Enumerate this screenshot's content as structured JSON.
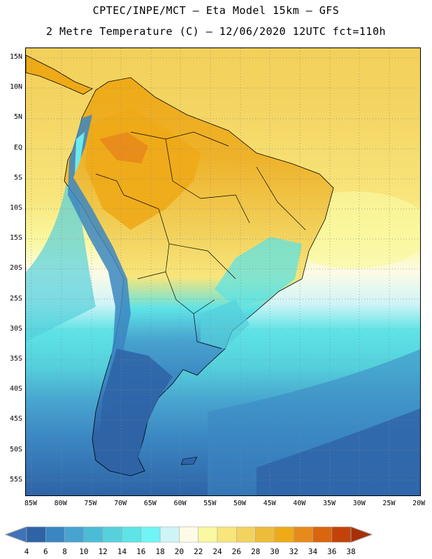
{
  "header": {
    "line1": "CPTEC/INPE/MCT –  Eta Model 15km – GFS",
    "line2": "2 Metre Temperature (C) – 12/06/2020 12UTC fct=110h"
  },
  "axes": {
    "lat_labels": [
      "15N",
      "10N",
      "5N",
      "EQ",
      "5S",
      "10S",
      "15S",
      "20S",
      "25S",
      "30S",
      "35S",
      "40S",
      "45S",
      "50S",
      "55S"
    ],
    "lon_labels": [
      "85W",
      "80W",
      "75W",
      "70W",
      "65W",
      "60W",
      "55W",
      "50W",
      "45W",
      "40W",
      "35W",
      "30W",
      "25W",
      "20W"
    ]
  },
  "colorbar": {
    "labels": [
      "4",
      "6",
      "8",
      "10",
      "12",
      "14",
      "16",
      "18",
      "20",
      "22",
      "24",
      "26",
      "28",
      "30",
      "32",
      "34",
      "36",
      "38"
    ],
    "colors": [
      "#3f73b8",
      "#2e63a6",
      "#3b86c2",
      "#47a3cf",
      "#4bbcd6",
      "#55d0dc",
      "#5ee3e6",
      "#6ff5f5",
      "#cff4f7",
      "#fdfbe6",
      "#faf8a0",
      "#f8e57b",
      "#f2d35e",
      "#eebc3b",
      "#eeaa17",
      "#e78a1b",
      "#d9650f",
      "#c24309",
      "#a82e06"
    ]
  }
}
